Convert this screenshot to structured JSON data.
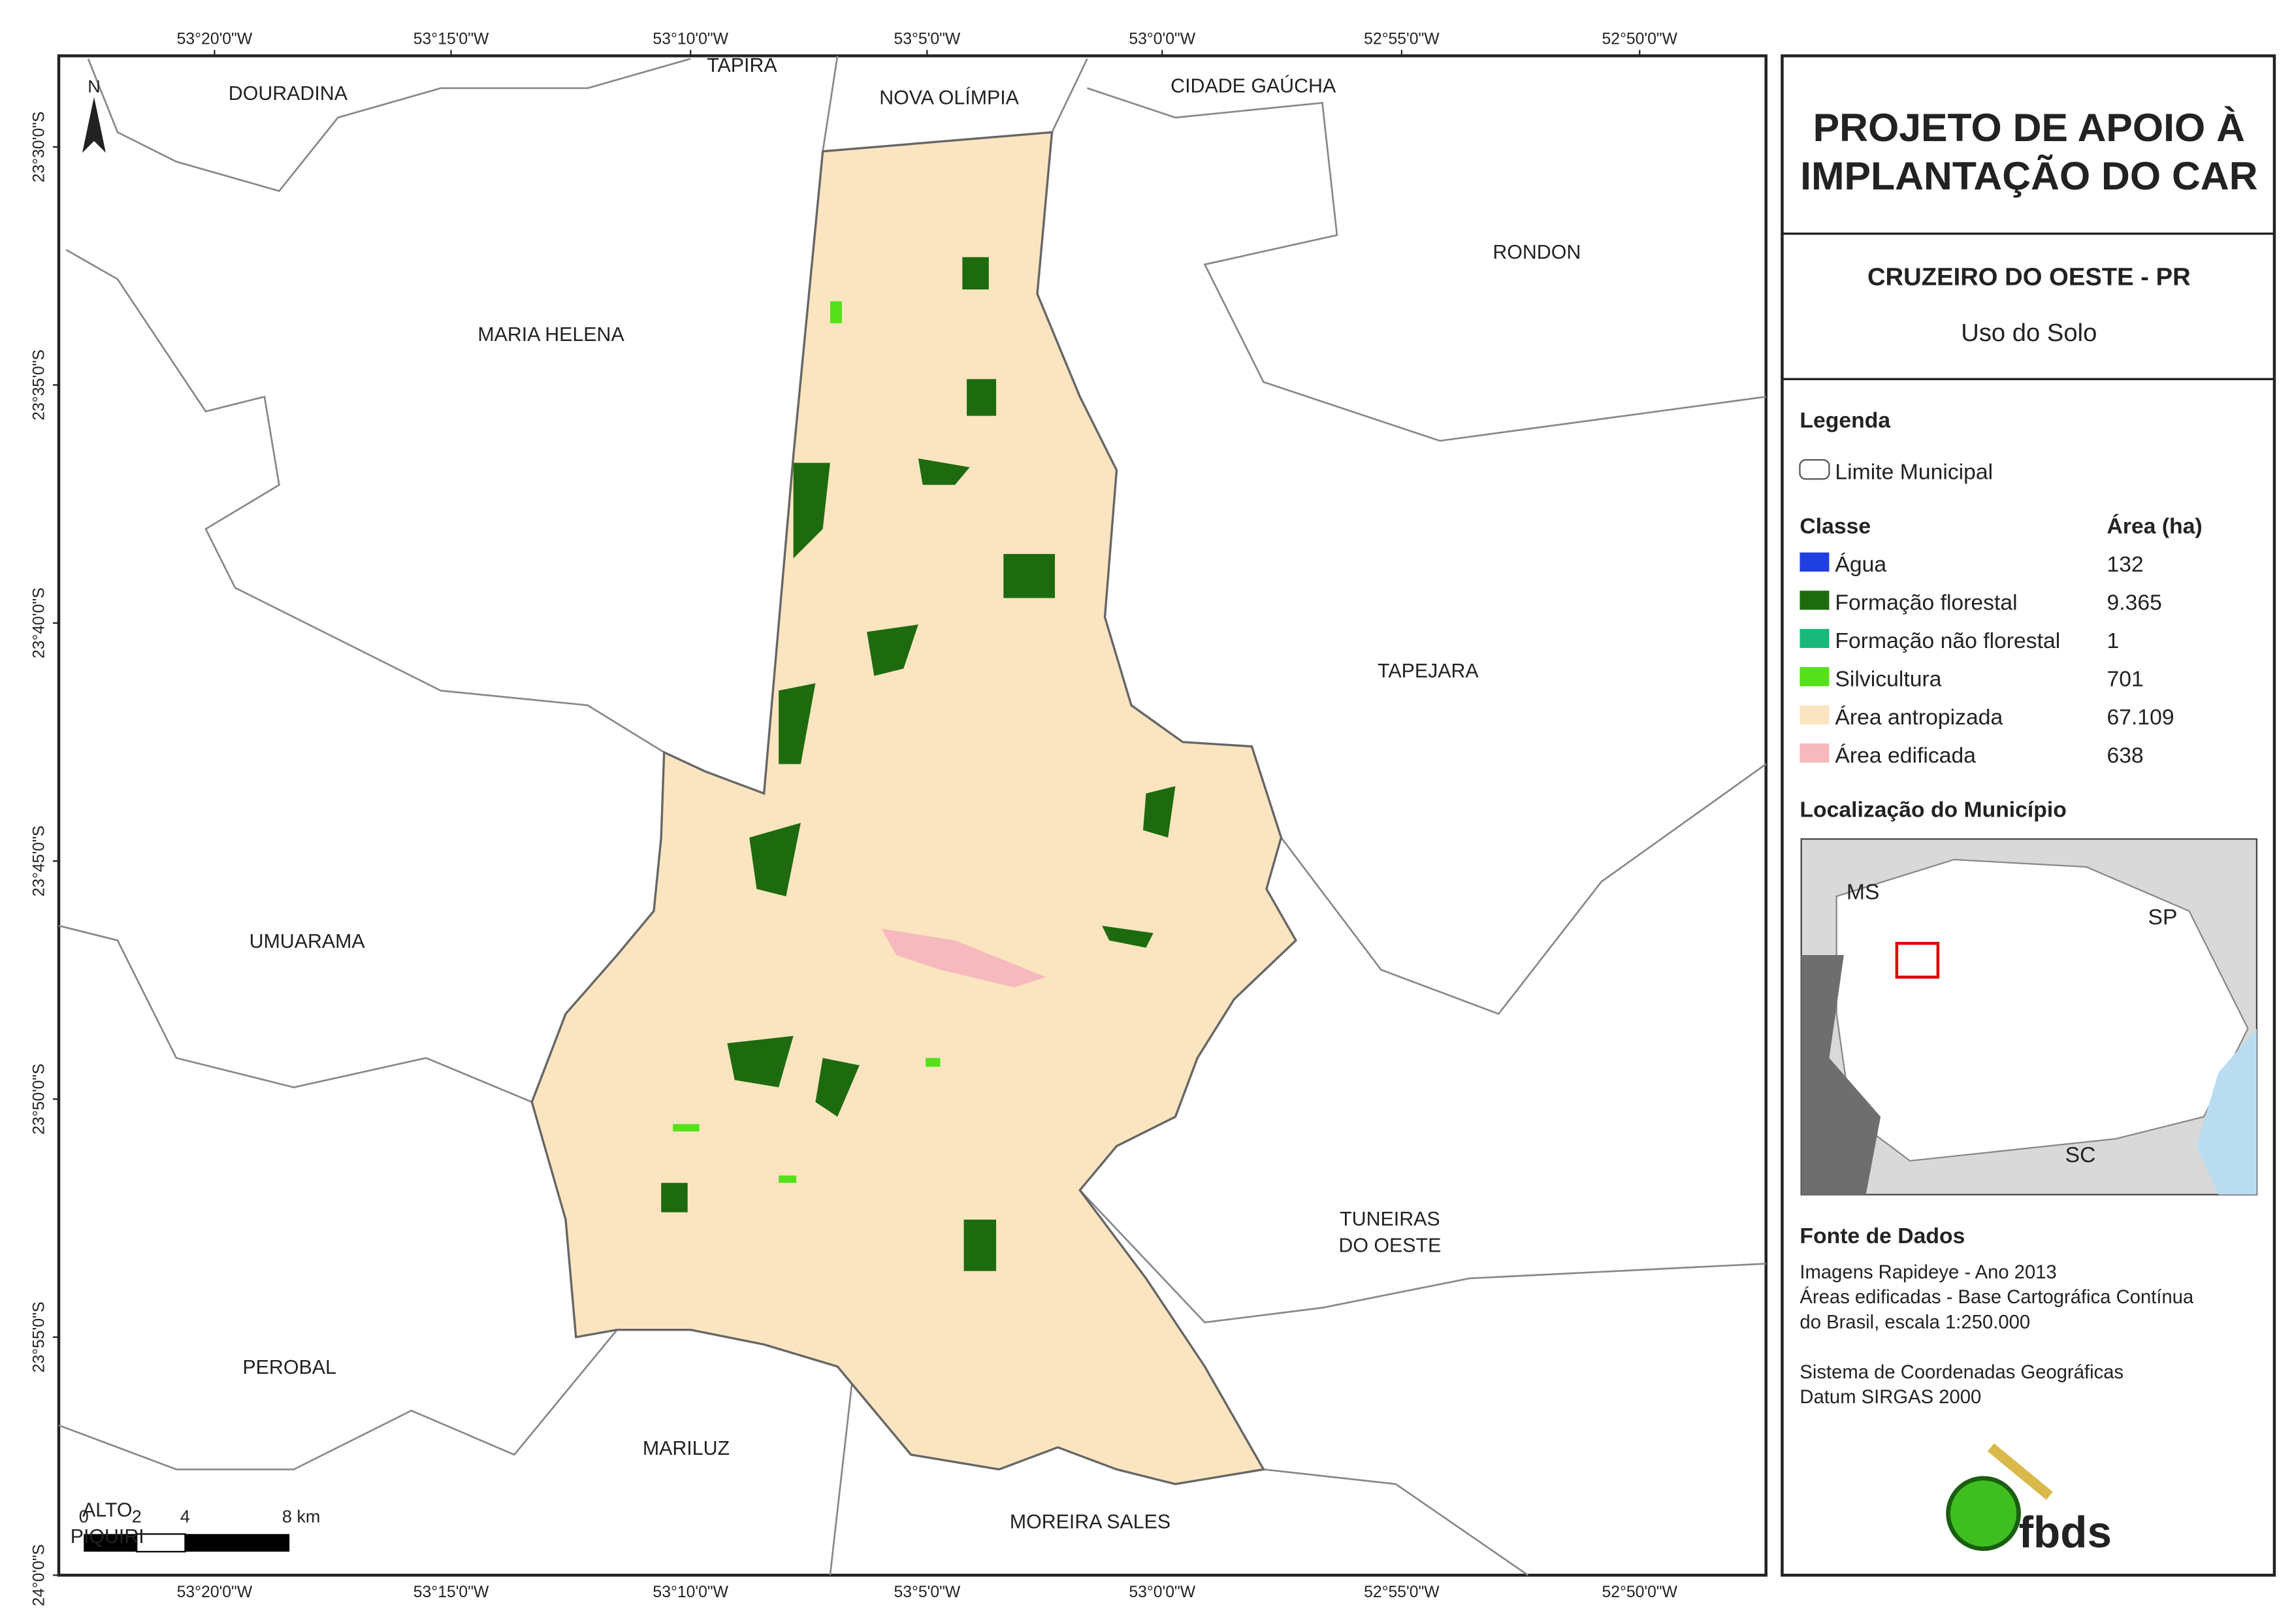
{
  "map": {
    "lon_ticks": [
      "53°20'0\"W",
      "53°15'0\"W",
      "53°10'0\"W",
      "53°5'0\"W",
      "53°0'0\"W",
      "52°55'0\"W",
      "52°50'0\"W"
    ],
    "lat_ticks": [
      "23°30'0\"S",
      "23°35'0\"S",
      "23°40'0\"S",
      "23°45'0\"S",
      "23°50'0\"S",
      "23°55'0\"S",
      "24°0'0\"S"
    ],
    "municipalities": [
      {
        "lines": [
          "DOURADINA"
        ]
      },
      {
        "lines": [
          "TAPIRA"
        ]
      },
      {
        "lines": [
          "NOVA OLÍMPIA"
        ]
      },
      {
        "lines": [
          "CIDADE GAÚCHA"
        ]
      },
      {
        "lines": [
          "RONDON"
        ]
      },
      {
        "lines": [
          "MARIA HELENA"
        ]
      },
      {
        "lines": [
          "TAPEJARA"
        ]
      },
      {
        "lines": [
          "UMUARAMA"
        ]
      },
      {
        "lines": [
          "TUNEIRAS",
          "DO OESTE"
        ]
      },
      {
        "lines": [
          "PEROBAL"
        ]
      },
      {
        "lines": [
          "MARILUZ"
        ]
      },
      {
        "lines": [
          "ALTO",
          "PIQUIRI"
        ]
      },
      {
        "lines": [
          "MOREIRA SALES"
        ]
      }
    ],
    "north": "N",
    "scale_bar": [
      "0",
      "2",
      "4",
      "8 km"
    ]
  },
  "panel": {
    "title": [
      "PROJETO DE APOIO À",
      "IMPLANTAÇÃO DO CAR"
    ],
    "municipality": "CRUZEIRO DO OESTE - PR",
    "subtitle": "Uso do Solo",
    "legend": {
      "heading": "Legenda",
      "boundary": "Limite Municipal",
      "class_header": "Classe",
      "area_header": "Área (ha)",
      "classes": [
        {
          "name": "Água",
          "area": "132",
          "color": "#1f3fe0"
        },
        {
          "name": "Formação florestal",
          "area": "9.365",
          "color": "#1e6b0f"
        },
        {
          "name": "Formação não florestal",
          "area": "1",
          "color": "#17b87a"
        },
        {
          "name": "Silvicultura",
          "area": "701",
          "color": "#55e01a"
        },
        {
          "name": "Área antropizada",
          "area": "67.109",
          "color": "#fbe5c0"
        },
        {
          "name": "Área edificada",
          "area": "638",
          "color": "#f6b9bd"
        }
      ]
    },
    "location": {
      "heading": "Localização do Município",
      "labels": [
        "MS",
        "SP",
        "SC"
      ]
    },
    "sources": {
      "heading": "Fonte de Dados",
      "lines": [
        "Imagens Rapideye - Ano 2013",
        "Áreas edificadas - Base Cartográfica Contínua",
        "do Brasil, escala 1:250.000",
        "",
        "Sistema de Coordenadas Geográficas",
        "Datum SIRGAS 2000"
      ]
    },
    "logo": "fbds"
  }
}
